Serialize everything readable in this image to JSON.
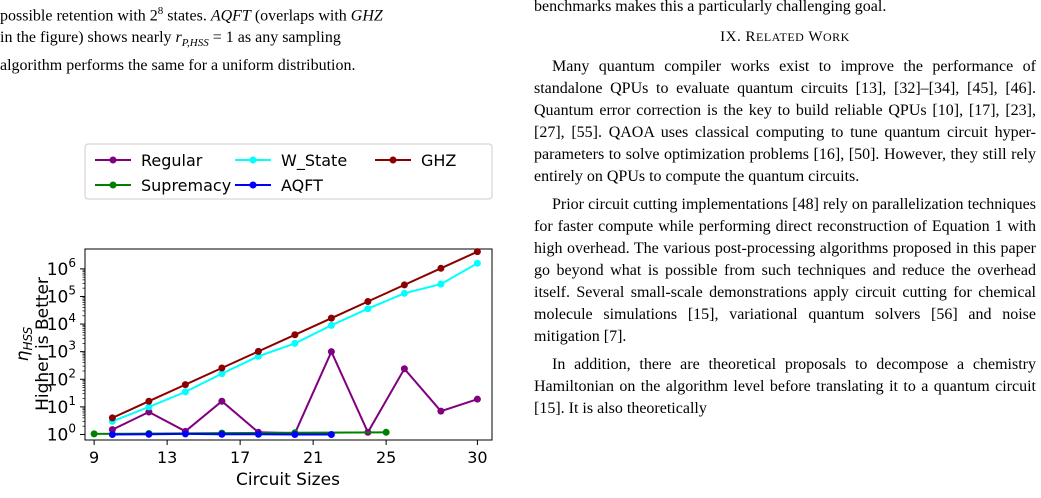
{
  "left_column": {
    "fragment_top": "benchmarks makes this a particularly challenging goal.",
    "line1": "possible retention with 2^8 states. AQFT (overlaps with GHZ",
    "line2": "in the figure) shows nearly r_P,HSS = 1 as any sampling",
    "line3": "algorithm performs the same for a uniform distribution."
  },
  "right_column": {
    "top_line": "benchmarks makes this a particularly challenging goal.",
    "section_heading": "IX. Related Work",
    "paragraphs": [
      "Many quantum compiler works exist to improve the performance of standalone QPUs to evaluate quantum circuits [13], [32]–[34], [45], [46]. Quantum error correction is the key to build reliable QPUs [10], [17], [23], [27], [55]. QAOA uses classical computing to tune quantum circuit hyper-parameters to solve optimization problems [16], [50]. However, they still rely entirely on QPUs to compute the quantum circuits.",
      "Prior circuit cutting implementations [48] rely on parallelization techniques for faster compute while performing direct reconstruction of Equation 1 with high overhead. The various post-processing algorithms proposed in this paper go beyond what is possible from such techniques and reduce the overhead itself. Several small-scale demonstrations apply circuit cutting for chemical molecule simulations [15], variational quantum solvers [56] and noise mitigation [7].",
      "In addition, there are theoretical proposals to decompose a chemistry Hamiltonian on the algorithm level before translating it to a quantum circuit [15]. It is also theoretically"
    ]
  },
  "chart_data": {
    "type": "line",
    "xlabel": "Circuit Sizes",
    "ylabel_line1": "η_HSS",
    "ylabel_line2": "Higher is Better",
    "x_ticks": [
      9,
      13,
      17,
      21,
      25,
      30
    ],
    "y_ticks": [
      "10^0",
      "10^1",
      "10^2",
      "10^3",
      "10^4",
      "10^5",
      "10^6"
    ],
    "y_scale": "log",
    "xlim": [
      8.5,
      30.8
    ],
    "ylim_log10": [
      -0.2,
      6.72
    ],
    "legend_placement": "top",
    "series": [
      {
        "name": "Regular",
        "color": "#800080",
        "x": [
          10,
          12,
          14,
          16,
          18,
          20,
          22,
          24,
          26,
          28,
          30
        ],
        "y": [
          1.5,
          6.5,
          1.3,
          16,
          1.2,
          1.1,
          1000,
          1.2,
          240,
          7,
          19
        ]
      },
      {
        "name": "Supremacy",
        "color": "#008000",
        "x": [
          9,
          12,
          16,
          20,
          25
        ],
        "y": [
          1.05,
          1.08,
          1.12,
          1.15,
          1.2
        ]
      },
      {
        "name": "W_State",
        "color": "#00FFFF",
        "x": [
          10,
          12,
          14,
          16,
          18,
          20,
          22,
          24,
          26,
          28,
          30
        ],
        "y": [
          3,
          10,
          35,
          160,
          680,
          2000,
          9000,
          36000,
          130000,
          280000,
          1600000
        ]
      },
      {
        "name": "AQFT",
        "color": "#0000FF",
        "x": [
          10,
          12,
          14,
          16,
          18,
          20,
          22
        ],
        "y": [
          1.0,
          1.02,
          1.05,
          1.02,
          1.02,
          1.0,
          1.0
        ]
      },
      {
        "name": "GHZ",
        "color": "#8B0000",
        "x": [
          10,
          12,
          14,
          16,
          18,
          20,
          22,
          24,
          26,
          28,
          30
        ],
        "y": [
          4,
          16,
          64,
          256,
          1024,
          4096,
          16384,
          65536,
          262144,
          1048576,
          4194304
        ]
      }
    ]
  }
}
